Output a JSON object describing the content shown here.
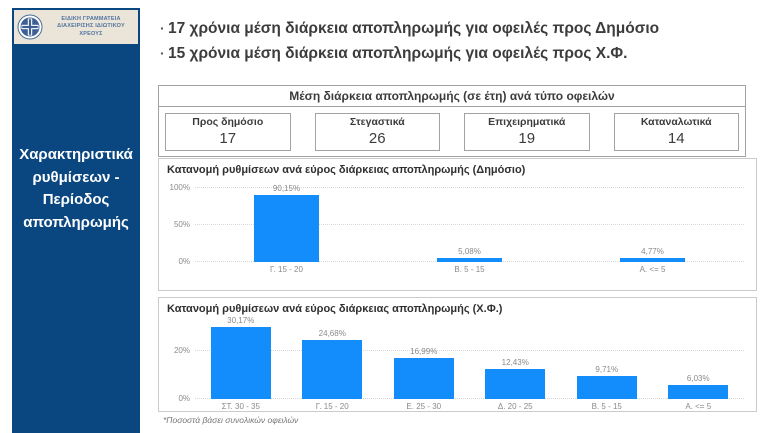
{
  "logo": {
    "org_line1": "ΕΙΔΙΚΗ ΓΡΑΜΜΑΤΕΙΑ",
    "org_line2": "ΔΙΑΧΕΙΡΙΣΗΣ ΙΔΙΩΤΙΚΟΥ",
    "org_line3": "ΧΡΕΟΥΣ"
  },
  "sidebar": {
    "title_line1": "Χαρακτηριστικά",
    "title_line2": "ρυθμίσεων -",
    "title_line3": "Περίοδος",
    "title_line4": "αποπληρωμής"
  },
  "bullets": [
    {
      "dot": "·",
      "text": "17 χρόνια μέση διάρκεια αποπληρωμής για οφειλές προς Δημόσιο"
    },
    {
      "dot": "·",
      "text": "15 χρόνια μέση διάρκεια αποπληρωμής για οφειλές προς Χ.Φ."
    }
  ],
  "summary_table": {
    "title": "Μέση διάρκεια αποπληρωμής (σε έτη) ανά τύπο οφειλών",
    "cells": [
      {
        "label": "Προς δημόσιο",
        "value": "17"
      },
      {
        "label": "Στεγαστικά",
        "value": "26"
      },
      {
        "label": "Επιχειρηματικά",
        "value": "19"
      },
      {
        "label": "Καταναλωτικά",
        "value": "14"
      }
    ]
  },
  "chart_data": [
    {
      "type": "bar",
      "title": "Κατανομή ρυθμίσεων ανά εύρος διάρκειας αποπληρωμής (Δημόσιο)",
      "categories": [
        "Γ. 15 - 20",
        "Β. 5 - 15",
        "Α. <= 5"
      ],
      "values": [
        90.15,
        5.08,
        4.77
      ],
      "value_labels": [
        "90,15%",
        "5,08%",
        "4,77%"
      ],
      "xlabel": "",
      "ylabel": "",
      "ylim": [
        0,
        100
      ],
      "yticks": [
        0,
        50,
        100
      ],
      "ytick_labels": [
        "0%",
        "50%",
        "100%"
      ],
      "grid": "dotted-horizontal",
      "legend": "none"
    },
    {
      "type": "bar",
      "title": "Κατανομή ρυθμίσεων ανά εύρος διάρκειας αποπληρωμής (Χ.Φ.)",
      "categories": [
        "ΣΤ. 30 - 35",
        "Γ. 15 - 20",
        "Ε. 25 - 30",
        "Δ. 20 - 25",
        "Β. 5 - 15",
        "Α. <= 5"
      ],
      "values": [
        30.17,
        24.68,
        16.99,
        12.43,
        9.71,
        6.03
      ],
      "value_labels": [
        "30,17%",
        "24,68%",
        "16,99%",
        "12,43%",
        "9,71%",
        "6,03%"
      ],
      "xlabel": "",
      "ylabel": "",
      "ylim": [
        0,
        32.5
      ],
      "yticks": [
        0,
        20
      ],
      "ytick_labels": [
        "0%",
        "20%"
      ],
      "grid": "dotted-horizontal",
      "legend": "none"
    }
  ],
  "footnote": "*Ποσοστά βάσει συνολικών οφειλών",
  "colors": {
    "bar": "#138CFC",
    "sidebar_bg": "#0A4781",
    "logo_bg": "#EAE5D8",
    "logo_text": "#51749F",
    "headline_text": "#3C3C3C",
    "axis_text": "#8A8A8A",
    "panel_border": "#CBCBCB",
    "table_border": "#A3A3A3"
  }
}
